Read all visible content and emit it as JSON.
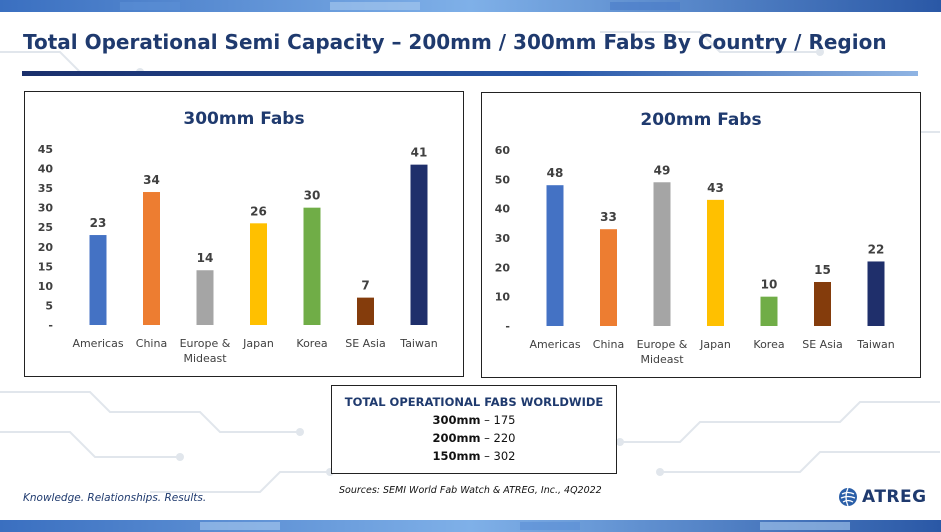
{
  "title": "Total Operational Semi Capacity – 200mm  / 300mm Fabs By Country / Region",
  "chart_data": [
    {
      "type": "bar",
      "title": "300mm Fabs",
      "categories": [
        "Americas",
        "China",
        "Europe & Mideast",
        "Japan",
        "Korea",
        "SE Asia",
        "Taiwan"
      ],
      "category_lines": [
        [
          "Americas"
        ],
        [
          "China"
        ],
        [
          "Europe &",
          "Mideast"
        ],
        [
          "Japan"
        ],
        [
          "Korea"
        ],
        [
          "SE Asia"
        ],
        [
          "Taiwan"
        ]
      ],
      "values": [
        23,
        34,
        14,
        26,
        30,
        7,
        41
      ],
      "colors": [
        "#4472c4",
        "#ed7d31",
        "#a5a5a5",
        "#ffc000",
        "#70ad47",
        "#843c0c",
        "#1f2f6b"
      ],
      "ylim": [
        0,
        45
      ],
      "yticks": [
        0,
        5,
        10,
        15,
        20,
        25,
        30,
        35,
        40,
        45
      ],
      "ytick_labels": [
        "-",
        "5",
        "10",
        "15",
        "20",
        "25",
        "30",
        "35",
        "40",
        "45"
      ],
      "grid": false,
      "legend": "none"
    },
    {
      "type": "bar",
      "title": "200mm Fabs",
      "categories": [
        "Americas",
        "China",
        "Europe & Mideast",
        "Japan",
        "Korea",
        "SE Asia",
        "Taiwan"
      ],
      "category_lines": [
        [
          "Americas"
        ],
        [
          "China"
        ],
        [
          "Europe &",
          "Mideast"
        ],
        [
          "Japan"
        ],
        [
          "Korea"
        ],
        [
          "SE Asia"
        ],
        [
          "Taiwan"
        ]
      ],
      "values": [
        48,
        33,
        49,
        43,
        10,
        15,
        22
      ],
      "colors": [
        "#4472c4",
        "#ed7d31",
        "#a5a5a5",
        "#ffc000",
        "#70ad47",
        "#843c0c",
        "#1f2f6b"
      ],
      "ylim": [
        0,
        60
      ],
      "yticks": [
        0,
        10,
        20,
        30,
        40,
        50,
        60
      ],
      "ytick_labels": [
        "-",
        "10",
        "20",
        "30",
        "40",
        "50",
        "60"
      ],
      "grid": false,
      "legend": "none"
    }
  ],
  "totals": {
    "title": "TOTAL OPERATIONAL FABS WORLDWIDE",
    "rows": [
      {
        "label": "300mm",
        "value": "– 175"
      },
      {
        "label": "200mm",
        "value": "– 220"
      },
      {
        "label": "150mm",
        "value": "– 302"
      }
    ]
  },
  "footer": {
    "tagline": "Knowledge. Relationships. Results.",
    "source": "Sources: SEMI World Fab Watch & ATREG, Inc., 4Q2022",
    "logo_text": "ATREG"
  },
  "colors": {
    "title_blue": "#1f3a6e",
    "accent_blue": "#2857a8"
  }
}
